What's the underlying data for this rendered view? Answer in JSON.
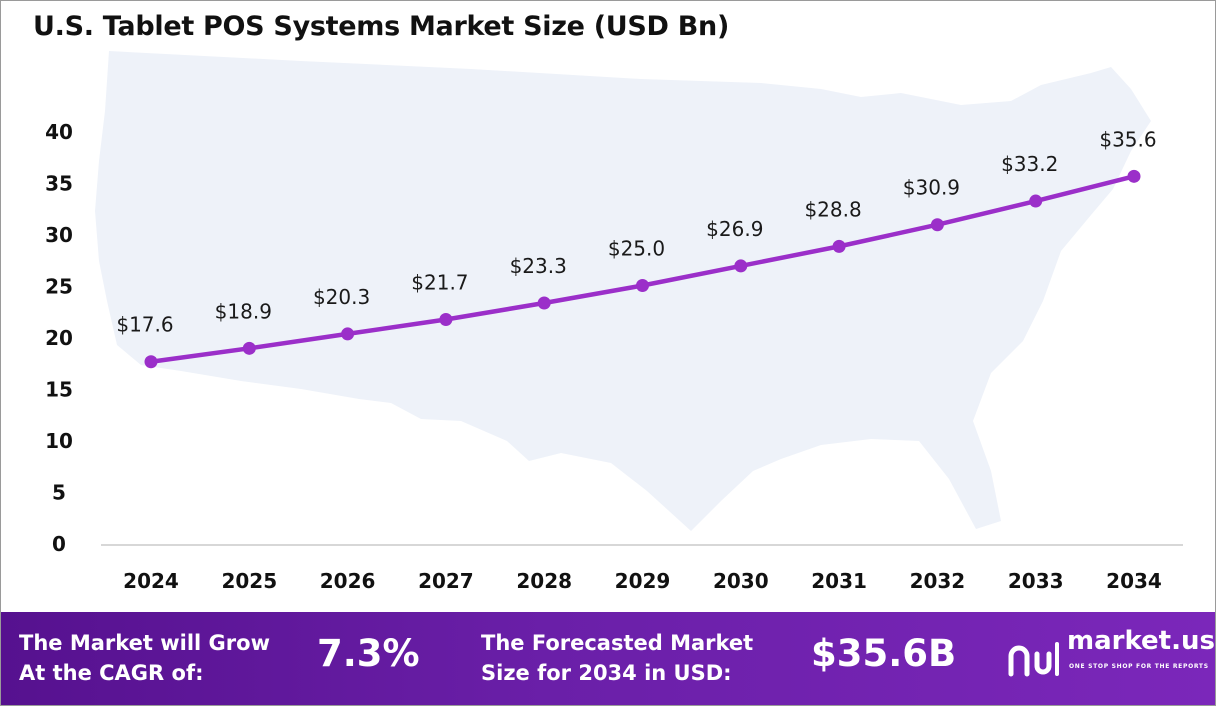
{
  "chart_data": {
    "type": "line",
    "title": "U.S. Tablet POS Systems Market Size (USD Bn)",
    "categories": [
      "2024",
      "2025",
      "2026",
      "2027",
      "2028",
      "2029",
      "2030",
      "2031",
      "2032",
      "2033",
      "2034"
    ],
    "values": [
      17.6,
      18.9,
      20.3,
      21.7,
      23.3,
      25.0,
      26.9,
      28.8,
      30.9,
      33.2,
      35.6
    ],
    "data_labels": [
      "$17.6",
      "$18.9",
      "$20.3",
      "$21.7",
      "$23.3",
      "$25.0",
      "$26.9",
      "$28.8",
      "$30.9",
      "$33.2",
      "$35.6"
    ],
    "y_ticks": [
      0,
      5,
      10,
      15,
      20,
      25,
      30,
      35,
      40
    ],
    "ylim": [
      0,
      40
    ],
    "xlabel": "",
    "ylabel": "",
    "grid": false,
    "line_color": "#9b2fc9",
    "marker_color": "#9b2fc9"
  },
  "footer": {
    "cagr_label_line1": "The Market will Grow",
    "cagr_label_line2": "At the CAGR of:",
    "cagr_value": "7.3%",
    "forecast_label_line1": "The Forecasted Market",
    "forecast_label_line2": "Size for 2034 in USD:",
    "forecast_value": "$35.6B",
    "logo_name": "market.us",
    "logo_tagline": "ONE STOP SHOP FOR THE REPORTS",
    "background_color": "#6a1fa8"
  }
}
